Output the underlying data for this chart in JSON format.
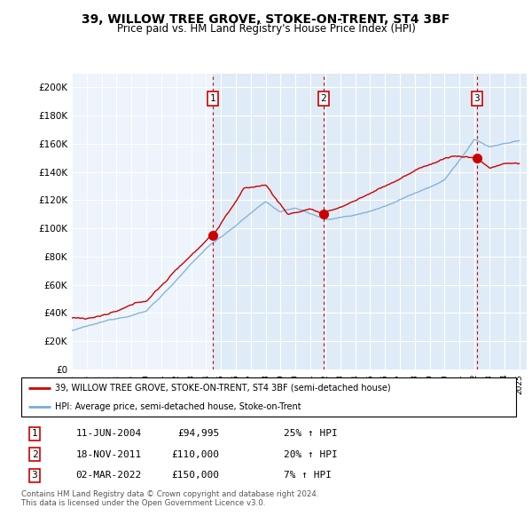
{
  "title": "39, WILLOW TREE GROVE, STOKE-ON-TRENT, ST4 3BF",
  "subtitle": "Price paid vs. HM Land Registry's House Price Index (HPI)",
  "ylim": [
    0,
    210000
  ],
  "yticks": [
    0,
    20000,
    40000,
    60000,
    80000,
    100000,
    120000,
    140000,
    160000,
    180000,
    200000
  ],
  "ytick_labels": [
    "£0",
    "£20K",
    "£40K",
    "£60K",
    "£80K",
    "£100K",
    "£120K",
    "£140K",
    "£160K",
    "£180K",
    "£200K"
  ],
  "xmin": 1995.0,
  "xmax": 2025.5,
  "sale_dates": [
    2004.44,
    2011.88,
    2022.17
  ],
  "sale_prices": [
    94995,
    110000,
    150000
  ],
  "sale_labels": [
    "1",
    "2",
    "3"
  ],
  "hpi_color": "#7dadd4",
  "price_color": "#cc0000",
  "vline_color": "#cc0000",
  "band_color": "#dae8f5",
  "legend_line1": "39, WILLOW TREE GROVE, STOKE-ON-TRENT, ST4 3BF (semi-detached house)",
  "legend_line2": "HPI: Average price, semi-detached house, Stoke-on-Trent",
  "table": [
    [
      "1",
      "11-JUN-2004",
      "£94,995",
      "25% ↑ HPI"
    ],
    [
      "2",
      "18-NOV-2011",
      "£110,000",
      "20% ↑ HPI"
    ],
    [
      "3",
      "02-MAR-2022",
      "£150,000",
      "7% ↑ HPI"
    ]
  ],
  "footnote": "Contains HM Land Registry data © Crown copyright and database right 2024.\nThis data is licensed under the Open Government Licence v3.0."
}
